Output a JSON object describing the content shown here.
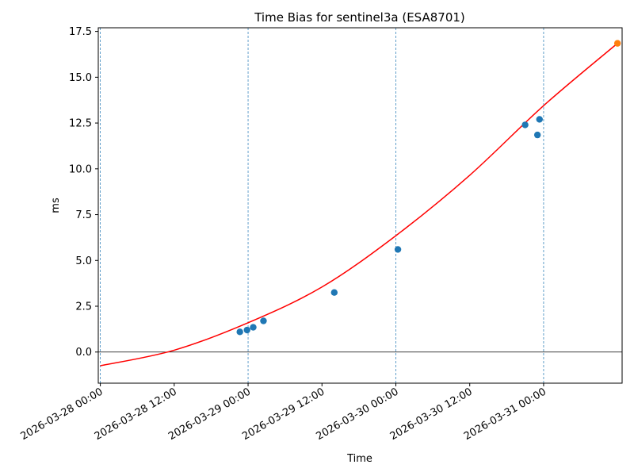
{
  "chart_data": {
    "type": "scatter",
    "title": "Time Bias for sentinel3a (ESA8701)",
    "xlabel": "Time",
    "ylabel": "ms",
    "xlim": [
      "2026-03-27T23:40",
      "2026-03-31T12:45"
    ],
    "ylim": [
      -1.7,
      17.7
    ],
    "x_ticks": [
      "2026-03-28 00:00",
      "2026-03-28 12:00",
      "2026-03-29 00:00",
      "2026-03-29 12:00",
      "2026-03-30 00:00",
      "2026-03-30 12:00",
      "2026-03-31 00:00"
    ],
    "y_ticks": [
      "0.0",
      "2.5",
      "5.0",
      "7.5",
      "10.0",
      "12.5",
      "15.0",
      "17.5"
    ],
    "vertical_lines_at": [
      "2026-03-28T00:00",
      "2026-03-29T00:00",
      "2026-03-30T00:00",
      "2026-03-31T00:00"
    ],
    "horizontal_line_at": 0,
    "grid": false,
    "series": [
      {
        "kind": "scatter",
        "color": "#1f77b4",
        "points": [
          {
            "x": "2026-03-28T22:40",
            "y": 1.1
          },
          {
            "x": "2026-03-28T23:50",
            "y": 1.2
          },
          {
            "x": "2026-03-29T00:50",
            "y": 1.35
          },
          {
            "x": "2026-03-29T02:30",
            "y": 1.7
          },
          {
            "x": "2026-03-29T14:00",
            "y": 3.25
          },
          {
            "x": "2026-03-30T00:20",
            "y": 5.6
          },
          {
            "x": "2026-03-30T21:00",
            "y": 12.4
          },
          {
            "x": "2026-03-30T23:00",
            "y": 11.85
          },
          {
            "x": "2026-03-30T23:20",
            "y": 12.7
          }
        ]
      },
      {
        "kind": "scatter",
        "color": "#ff7f0e",
        "points": [
          {
            "x": "2026-03-31T12:00",
            "y": 16.85
          }
        ]
      },
      {
        "kind": "line",
        "color": "#ff0000",
        "points": [
          {
            "x": "2026-03-28T00:00",
            "y": -0.75
          },
          {
            "x": "2026-03-28T12:00",
            "y": 0.1
          },
          {
            "x": "2026-03-29T00:00",
            "y": 1.6
          },
          {
            "x": "2026-03-29T12:00",
            "y": 3.55
          },
          {
            "x": "2026-03-30T00:00",
            "y": 6.35
          },
          {
            "x": "2026-03-30T12:00",
            "y": 9.65
          },
          {
            "x": "2026-03-31T00:00",
            "y": 13.45
          },
          {
            "x": "2026-03-31T12:00",
            "y": 16.85
          }
        ]
      }
    ]
  }
}
